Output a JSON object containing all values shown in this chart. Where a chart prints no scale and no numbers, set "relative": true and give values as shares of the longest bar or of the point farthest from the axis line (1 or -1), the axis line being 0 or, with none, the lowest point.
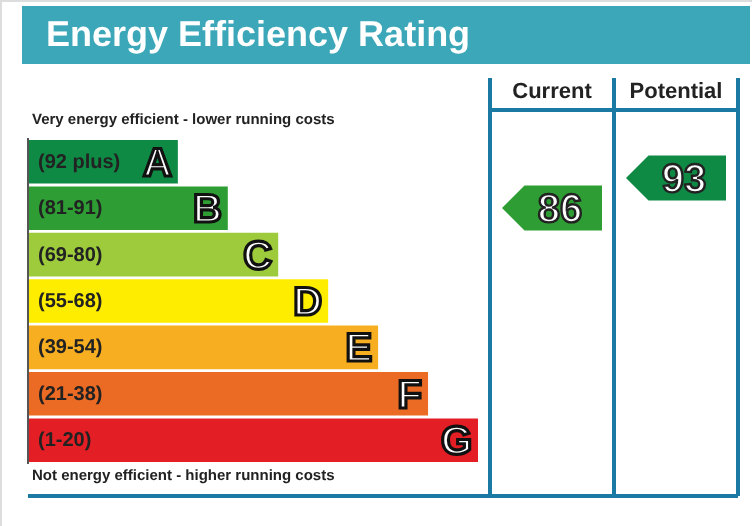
{
  "chart_data": {
    "type": "bar",
    "orientation": "horizontal",
    "relative": true,
    "title": "Energy Efficiency Rating",
    "categories": [
      "(92 plus)",
      "(81-91)",
      "(69-80)",
      "(55-68)",
      "(39-54)",
      "(21-38)",
      "(1-20)"
    ],
    "values": [
      0.333,
      0.444,
      0.556,
      0.667,
      0.778,
      0.889,
      1
    ],
    "colors": [
      "#0f8a45",
      "#2e9e34",
      "#9dcb3c",
      "#ffed00",
      "#f7ae21",
      "#ec6b24",
      "#e31e24"
    ],
    "annotations": [
      "Very energy efficient - lower running costs",
      "Not energy efficient - higher running costs",
      "Current",
      "Potential",
      "86",
      "93",
      {
        "text": "A",
        "y": "(92 plus)"
      },
      {
        "text": "B",
        "y": "(81-91)"
      },
      {
        "text": "C",
        "y": "(69-80)"
      },
      {
        "text": "D",
        "y": "(55-68)"
      },
      {
        "text": "E",
        "y": "(39-54)"
      },
      {
        "text": "F",
        "y": "(21-38)"
      },
      {
        "text": "G",
        "y": "(1-20)"
      }
    ]
  }
}
